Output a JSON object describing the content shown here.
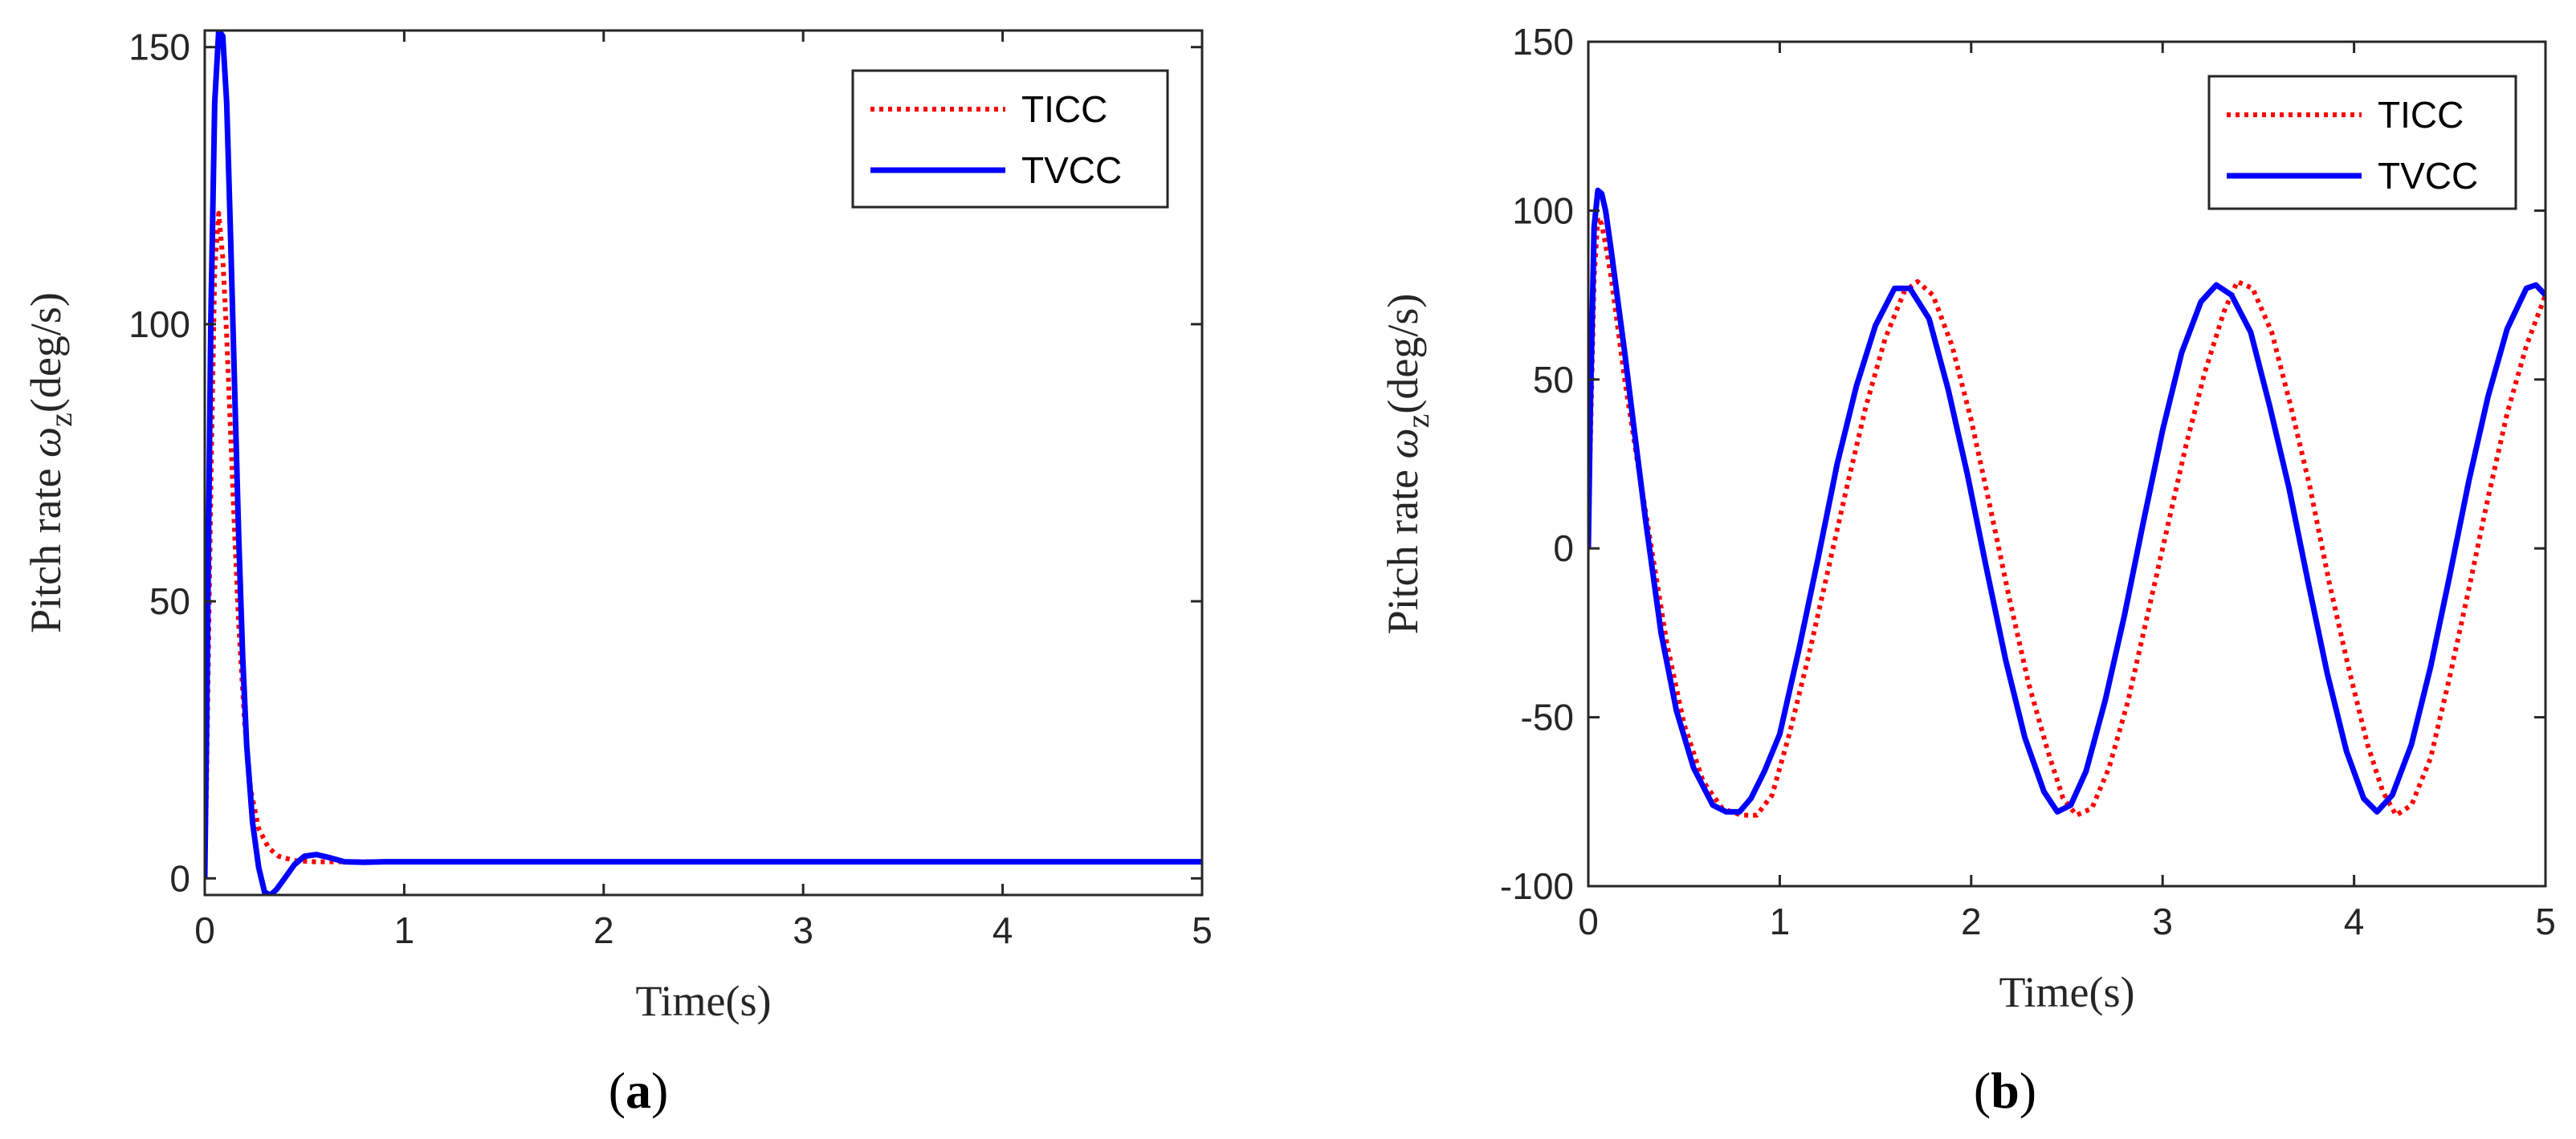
{
  "chart_data": [
    {
      "type": "line",
      "panel": "a",
      "caption_letter": "a",
      "xlabel": "Time(s)",
      "ylabel": {
        "prefix": "Pitch rate ",
        "symbol": "ω",
        "subscript": "z",
        "unit": "(deg/s)"
      },
      "xlim": [
        0,
        5
      ],
      "ylim": [
        -3,
        153
      ],
      "xticks": [
        0,
        1,
        2,
        3,
        4,
        5
      ],
      "yticks": [
        0,
        50,
        100,
        150
      ],
      "grid": false,
      "legend_position": "top-right",
      "series": [
        {
          "name": "TICC",
          "color": "#ff0000",
          "style": "dotted",
          "x": [
            0,
            0.01,
            0.03,
            0.05,
            0.07,
            0.09,
            0.11,
            0.13,
            0.15,
            0.17,
            0.2,
            0.23,
            0.27,
            0.32,
            0.37,
            0.45,
            0.55,
            0.7,
            1.0,
            2.0,
            3.0,
            4.0,
            5.0
          ],
          "y": [
            0,
            20,
            70,
            110,
            120,
            112,
            98,
            80,
            62,
            46,
            28,
            16,
            9,
            5.5,
            4,
            3.2,
            3,
            3,
            3,
            3,
            3,
            3,
            3
          ]
        },
        {
          "name": "TVCC",
          "color": "#0000ff",
          "style": "solid",
          "x": [
            0,
            0.01,
            0.03,
            0.05,
            0.07,
            0.09,
            0.11,
            0.13,
            0.15,
            0.17,
            0.19,
            0.21,
            0.24,
            0.27,
            0.3,
            0.33,
            0.36,
            0.4,
            0.45,
            0.5,
            0.56,
            0.62,
            0.7,
            0.8,
            0.9,
            1.0,
            2.0,
            3.0,
            4.0,
            5.0
          ],
          "y": [
            0,
            30,
            100,
            140,
            153,
            152,
            140,
            115,
            88,
            62,
            40,
            24,
            10,
            2,
            -2.5,
            -3,
            -2,
            0,
            2.5,
            4,
            4.3,
            3.8,
            3,
            2.9,
            3,
            3,
            3,
            3,
            3,
            3
          ]
        }
      ]
    },
    {
      "type": "line",
      "panel": "b",
      "caption_letter": "b",
      "xlabel": "Time(s)",
      "ylabel": {
        "prefix": "Pitch rate ",
        "symbol": "ω",
        "subscript": "z",
        "unit": "(deg/s)"
      },
      "xlim": [
        0,
        5
      ],
      "ylim": [
        -100,
        150
      ],
      "xticks": [
        0,
        1,
        2,
        3,
        4,
        5
      ],
      "yticks": [
        -100,
        -50,
        0,
        50,
        100,
        150
      ],
      "grid": false,
      "legend_position": "top-right",
      "series": [
        {
          "name": "TICC",
          "color": "#ff0000",
          "style": "dotted",
          "x": [
            0,
            0.01,
            0.03,
            0.05,
            0.07,
            0.09,
            0.12,
            0.15,
            0.19,
            0.25,
            0.33,
            0.41,
            0.5,
            0.6,
            0.7,
            0.8,
            0.88,
            0.96,
            1.05,
            1.15,
            1.25,
            1.35,
            1.45,
            1.55,
            1.65,
            1.72,
            1.8,
            1.9,
            2.0,
            2.1,
            2.2,
            2.3,
            2.4,
            2.48,
            2.55,
            2.63,
            2.72,
            2.82,
            2.92,
            3.02,
            3.12,
            3.22,
            3.32,
            3.39,
            3.47,
            3.57,
            3.67,
            3.77,
            3.87,
            3.97,
            4.07,
            4.15,
            4.22,
            4.3,
            4.4,
            4.5,
            4.6,
            4.7,
            4.8,
            4.9,
            5.0
          ],
          "y": [
            0,
            30,
            80,
            98,
            96,
            90,
            80,
            67,
            50,
            28,
            0,
            -28,
            -52,
            -69,
            -77,
            -79,
            -79,
            -73,
            -55,
            -32,
            -7,
            18,
            42,
            62,
            76,
            79,
            75,
            60,
            38,
            12,
            -15,
            -40,
            -60,
            -74,
            -79,
            -77,
            -65,
            -45,
            -20,
            5,
            30,
            52,
            70,
            79,
            77,
            64,
            42,
            18,
            -10,
            -35,
            -58,
            -72,
            -79,
            -76,
            -62,
            -38,
            -12,
            15,
            40,
            60,
            75
          ]
        },
        {
          "name": "TVCC",
          "color": "#0000ff",
          "style": "solid",
          "x": [
            0,
            0.01,
            0.03,
            0.05,
            0.07,
            0.09,
            0.12,
            0.15,
            0.19,
            0.24,
            0.3,
            0.38,
            0.46,
            0.55,
            0.65,
            0.72,
            0.79,
            0.85,
            0.92,
            1.0,
            1.1,
            1.2,
            1.3,
            1.4,
            1.5,
            1.6,
            1.68,
            1.78,
            1.88,
            1.98,
            2.08,
            2.18,
            2.28,
            2.38,
            2.45,
            2.52,
            2.6,
            2.7,
            2.8,
            2.9,
            3.0,
            3.1,
            3.2,
            3.28,
            3.36,
            3.46,
            3.56,
            3.66,
            3.76,
            3.86,
            3.96,
            4.05,
            4.12,
            4.2,
            4.3,
            4.4,
            4.5,
            4.6,
            4.7,
            4.8,
            4.9,
            4.95,
            5.0
          ],
          "y": [
            0,
            40,
            95,
            106,
            105,
            100,
            88,
            75,
            58,
            35,
            8,
            -25,
            -48,
            -65,
            -76,
            -78,
            -78,
            -74,
            -66,
            -55,
            -30,
            -3,
            25,
            48,
            66,
            77,
            77,
            68,
            47,
            22,
            -6,
            -33,
            -56,
            -72,
            -78,
            -76,
            -66,
            -45,
            -20,
            8,
            35,
            58,
            73,
            78,
            75,
            64,
            42,
            18,
            -10,
            -37,
            -60,
            -74,
            -78,
            -73,
            -58,
            -35,
            -8,
            20,
            45,
            65,
            77,
            78,
            75
          ]
        }
      ]
    }
  ]
}
